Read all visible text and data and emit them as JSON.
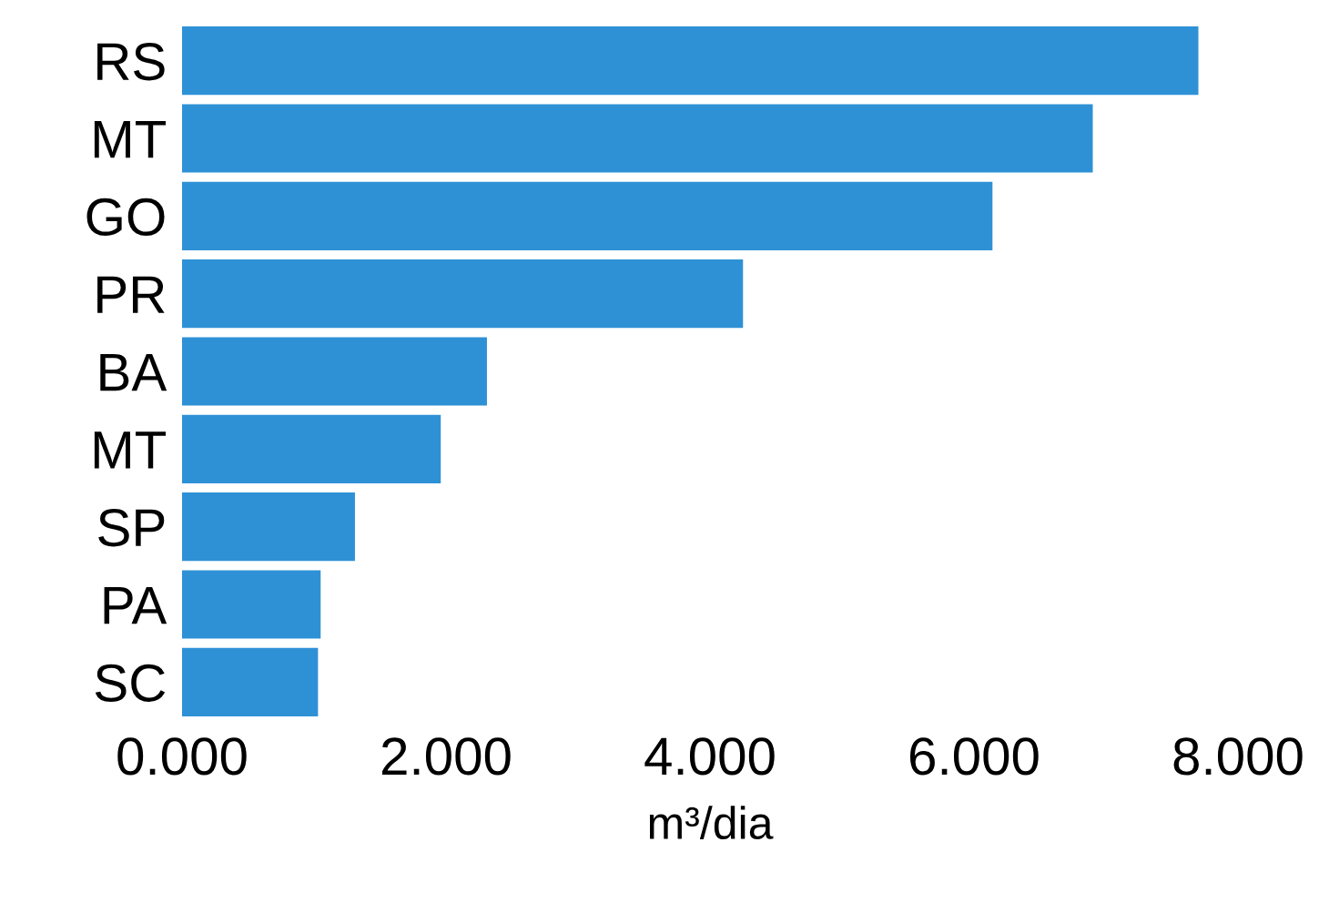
{
  "chart_data": {
    "type": "bar",
    "orientation": "horizontal",
    "xlabel": "m³/dia",
    "categories": [
      "RS",
      "MT",
      "GO",
      "PR",
      "BA",
      "MT",
      "SP",
      "PA",
      "SC"
    ],
    "values": [
      7.7,
      6.9,
      6.14,
      4.25,
      2.31,
      1.96,
      1.31,
      1.05,
      1.03
    ],
    "color": "#2e91d6",
    "xlim": [
      0,
      8
    ],
    "xticks": [
      {
        "value": 0,
        "label": "0.000"
      },
      {
        "value": 2,
        "label": "2.000"
      },
      {
        "value": 4,
        "label": "4.000"
      },
      {
        "value": 6,
        "label": "6.000"
      },
      {
        "value": 8,
        "label": "8.000"
      }
    ],
    "grid": false
  }
}
